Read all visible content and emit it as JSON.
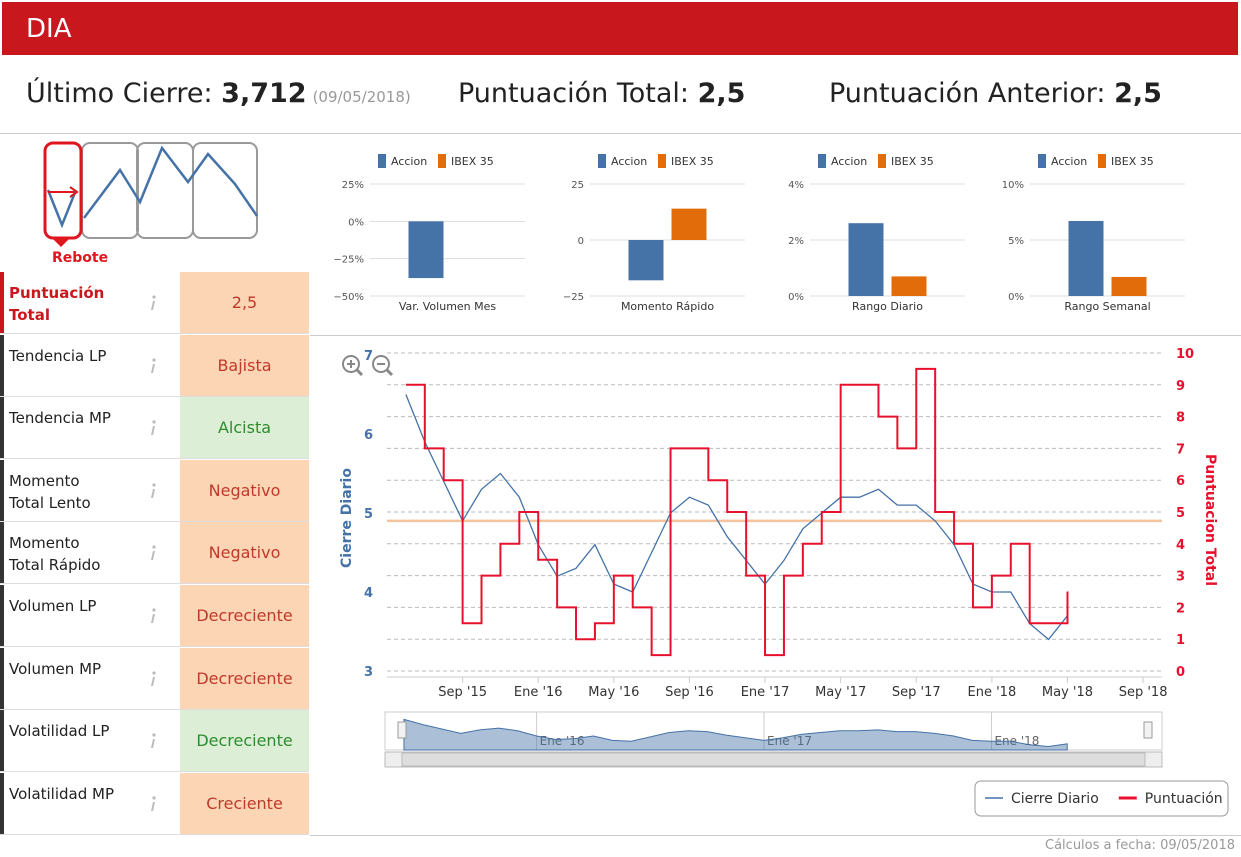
{
  "header": {
    "title": "DIA"
  },
  "summary": {
    "last_close_label": "Último Cierre:",
    "last_close": "3,712",
    "last_close_date": "(09/05/2018)",
    "total_label": "Puntuación Total:",
    "total": "2,5",
    "previous_label": "Puntuación Anterior:",
    "previous": "2,5"
  },
  "pattern": {
    "label": "Rebote"
  },
  "indicators": [
    {
      "label": "Puntuación Total",
      "value": "2,5",
      "bg": "#fcd5b4",
      "color": "#c0392b"
    },
    {
      "label": "Tendencia LP",
      "value": "Bajista",
      "bg": "#fcd5b4",
      "color": "#c0392b"
    },
    {
      "label": "Tendencia MP",
      "value": "Alcista",
      "bg": "#dcefd6",
      "color": "#2e8b2e"
    },
    {
      "label": "Momento Total Lento",
      "value": "Negativo",
      "bg": "#fcd5b4",
      "color": "#c0392b"
    },
    {
      "label": "Momento Total Rápido",
      "value": "Negativo",
      "bg": "#fcd5b4",
      "color": "#c0392b"
    },
    {
      "label": "Volumen LP",
      "value": "Decreciente",
      "bg": "#fcd5b4",
      "color": "#c0392b"
    },
    {
      "label": "Volumen MP",
      "value": "Decreciente",
      "bg": "#fcd5b4",
      "color": "#c0392b"
    },
    {
      "label": "Volatilidad LP",
      "value": "Decreciente",
      "bg": "#dcefd6",
      "color": "#2e8b2e"
    },
    {
      "label": "Volatilidad MP",
      "value": "Creciente",
      "bg": "#fcd5b4",
      "color": "#c0392b"
    }
  ],
  "chart_data": [
    {
      "type": "bar",
      "categories": [
        "Var. Volumen Mes"
      ],
      "series": [
        {
          "name": "Accion",
          "color": "#4572a7",
          "values": [
            -38
          ]
        },
        {
          "name": "IBEX 35",
          "color": "#e36c0a",
          "values": [
            null
          ]
        }
      ],
      "ylim": [
        -50,
        25
      ],
      "yticks": [
        {
          "value": -50,
          "label": "−50%"
        },
        {
          "value": -25,
          "label": "−25%"
        },
        {
          "value": 0,
          "label": "0%"
        },
        {
          "value": 25,
          "label": "25%"
        }
      ],
      "grid": true
    },
    {
      "type": "bar",
      "categories": [
        "Momento Rápido"
      ],
      "series": [
        {
          "name": "Accion",
          "color": "#4572a7",
          "values": [
            -18
          ]
        },
        {
          "name": "IBEX 35",
          "color": "#e36c0a",
          "values": [
            14
          ]
        }
      ],
      "ylim": [
        -25,
        25
      ],
      "yticks": [
        {
          "value": -25,
          "label": "−25"
        },
        0,
        25
      ],
      "grid": true
    },
    {
      "type": "bar",
      "categories": [
        "Rango Diario"
      ],
      "series": [
        {
          "name": "Accion",
          "color": "#4572a7",
          "values": [
            2.6
          ]
        },
        {
          "name": "IBEX 35",
          "color": "#e36c0a",
          "values": [
            0.7
          ]
        }
      ],
      "ylim": [
        0,
        4
      ],
      "yticks": [
        {
          "value": 0,
          "label": "0%"
        },
        {
          "value": 2,
          "label": "2%"
        },
        {
          "value": 4,
          "label": "4%"
        }
      ],
      "grid": true
    },
    {
      "type": "bar",
      "categories": [
        "Rango Semanal"
      ],
      "series": [
        {
          "name": "Accion",
          "color": "#4572a7",
          "values": [
            6.7
          ]
        },
        {
          "name": "IBEX 35",
          "color": "#e36c0a",
          "values": [
            1.7
          ]
        }
      ],
      "ylim": [
        0,
        10
      ],
      "yticks": [
        {
          "value": 0,
          "label": "0%"
        },
        {
          "value": 5,
          "label": "5%"
        },
        {
          "value": 10,
          "label": "10%"
        }
      ],
      "grid": true
    },
    {
      "type": "line",
      "x": [
        "2015-06",
        "2015-07",
        "2015-08",
        "2015-09",
        "2015-10",
        "2015-11",
        "2015-12",
        "2016-01",
        "2016-02",
        "2016-03",
        "2016-04",
        "2016-05",
        "2016-06",
        "2016-07",
        "2016-08",
        "2016-09",
        "2016-10",
        "2016-11",
        "2016-12",
        "2017-01",
        "2017-02",
        "2017-03",
        "2017-04",
        "2017-05",
        "2017-06",
        "2017-07",
        "2017-08",
        "2017-09",
        "2017-10",
        "2017-11",
        "2017-12",
        "2018-01",
        "2018-02",
        "2018-03",
        "2018-04",
        "2018-05"
      ],
      "series": [
        {
          "name": "Cierre Diario",
          "color": "#4572a7",
          "values": [
            6.5,
            5.9,
            5.4,
            4.9,
            5.3,
            5.5,
            5.2,
            4.6,
            4.2,
            4.3,
            4.6,
            4.1,
            4.0,
            4.5,
            5.0,
            5.2,
            5.1,
            4.7,
            4.4,
            4.1,
            4.4,
            4.8,
            5.0,
            5.2,
            5.2,
            5.3,
            5.1,
            5.1,
            4.9,
            4.6,
            4.1,
            4.0,
            4.0,
            3.6,
            3.4,
            3.7
          ]
        },
        {
          "name": "Puntuación",
          "color": "#e8112d",
          "axis": "y2",
          "step": true,
          "values": [
            9,
            7,
            6,
            1.5,
            3,
            4,
            5,
            3.5,
            2,
            1,
            1.5,
            3,
            2,
            0.5,
            7,
            7,
            6,
            5,
            3,
            0.5,
            3,
            4,
            5,
            9,
            9,
            8,
            7,
            9.5,
            5,
            4,
            2,
            3,
            4,
            1.5,
            1.5,
            2.5
          ]
        }
      ],
      "xlim": [
        "2015-05",
        "2018-10"
      ],
      "xticks": [
        {
          "value": "2015-09",
          "label": "Sep '15"
        },
        {
          "value": "2016-01",
          "label": "Ene '16"
        },
        {
          "value": "2016-05",
          "label": "May '16"
        },
        {
          "value": "2016-09",
          "label": "Sep '16"
        },
        {
          "value": "2017-01",
          "label": "Ene '17"
        },
        {
          "value": "2017-05",
          "label": "May '17"
        },
        {
          "value": "2017-09",
          "label": "Sep '17"
        },
        {
          "value": "2018-01",
          "label": "Ene '18"
        },
        {
          "value": "2018-05",
          "label": "May '18"
        },
        {
          "value": "2018-09",
          "label": "Sep '18"
        }
      ],
      "ylim": [
        3,
        7
      ],
      "yticks": [
        3,
        4,
        5,
        6,
        7
      ],
      "y2lim": [
        0,
        10
      ],
      "y2ticks": [
        0,
        1,
        2,
        3,
        4,
        5,
        6,
        7,
        8,
        9,
        10
      ],
      "ylabel": "Cierre Diario",
      "y2label": "Puntuacion Total",
      "grid": true,
      "grid_axis": "y2",
      "plot_line": {
        "value": 4.9,
        "color": "#f5c39e"
      },
      "navigator": {
        "xticks": [
          {
            "value": "2016-01",
            "label": "Ene '16"
          },
          {
            "value": "2017-01",
            "label": "Ene '17"
          },
          {
            "value": "2018-01",
            "label": "Ene '18"
          }
        ]
      }
    }
  ],
  "footer": "Cálculos a fecha: 09/05/2018"
}
